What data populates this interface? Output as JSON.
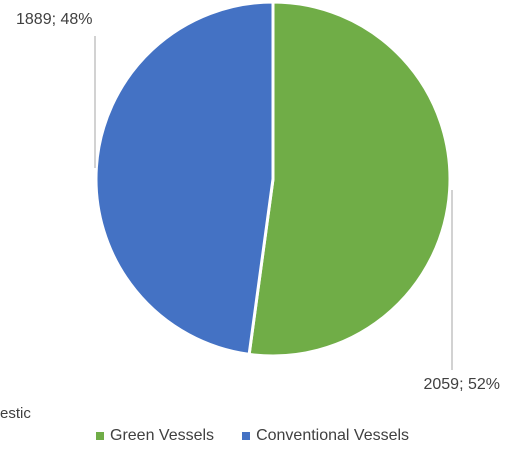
{
  "partial_text": "estic",
  "chart_data": {
    "type": "pie",
    "categories": [
      "Green Vessels",
      "Conventional Vessels"
    ],
    "values": [
      2059,
      1889
    ],
    "percent_labels": [
      "52%",
      "48%"
    ],
    "data_labels": [
      "2059; 52%",
      "1889; 48%"
    ],
    "colors": [
      "#70ad47",
      "#4472c4"
    ],
    "legend": {
      "position": "bottom",
      "items": [
        {
          "label": "Green Vessels",
          "color": "#70ad47"
        },
        {
          "label": "Conventional Vessels",
          "color": "#4472c4"
        }
      ]
    }
  }
}
